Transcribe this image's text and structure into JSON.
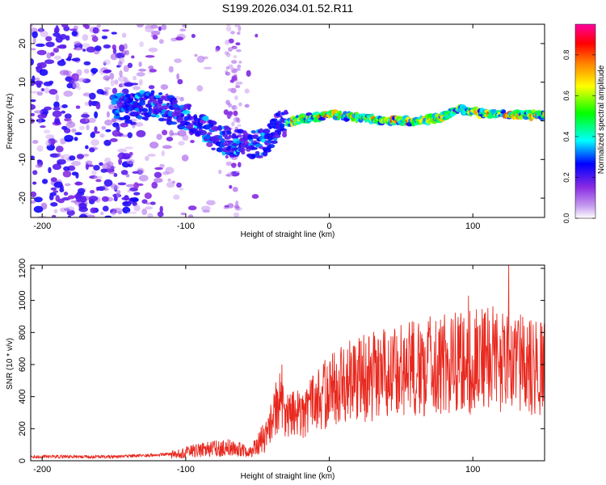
{
  "figure": {
    "title": "S199.2026.034.01.52.R11"
  },
  "colors": {
    "trace": "#e8281e",
    "axis": "#000000",
    "background": "#ffffff"
  },
  "chart_data": [
    {
      "type": "heatmap",
      "title": "S199.2026.034.01.52.R11",
      "xlabel": "Height of straight line (km)",
      "ylabel": "Frequency (Hz)",
      "xlim": [
        -208,
        150
      ],
      "ylim": [
        -25,
        25
      ],
      "xticks": [
        -200,
        -100,
        0,
        100
      ],
      "yticks": [
        -20,
        -10,
        0,
        10,
        20
      ],
      "colorbar": {
        "label": "Normalized spectral amplitude",
        "range": [
          0,
          0.95
        ],
        "ticks": [
          0.0,
          0.2,
          0.4,
          0.6,
          0.8
        ],
        "tick_labels": [
          "0.0",
          "0.2",
          "0.4",
          "0.6",
          "0.8"
        ],
        "colormap": [
          "#ffffff",
          "#8a2be2",
          "#0000ff",
          "#00ffff",
          "#00ff00",
          "#ffff00",
          "#ff8000",
          "#ff0000",
          "#ff00c0"
        ]
      },
      "ridge": {
        "description_points": [
          [
            -150,
            4
          ],
          [
            -120,
            4
          ],
          [
            -100,
            1
          ],
          [
            -80,
            -4
          ],
          [
            -65,
            -6
          ],
          [
            -45,
            -6
          ],
          [
            -35,
            -1
          ],
          [
            -20,
            0.5
          ],
          [
            0,
            1.5
          ],
          [
            20,
            1
          ],
          [
            40,
            0
          ],
          [
            60,
            0
          ],
          [
            75,
            0.5
          ],
          [
            90,
            3
          ],
          [
            105,
            2
          ],
          [
            120,
            1.5
          ],
          [
            150,
            1.5
          ]
        ],
        "high_amplitude_range_km": [
          -30,
          150
        ]
      }
    },
    {
      "type": "line",
      "xlabel": "Height of straight line (km)",
      "ylabel": "SNR (10 * v/v)",
      "xlim": [
        -208,
        150
      ],
      "ylim": [
        0,
        1220
      ],
      "xticks": [
        -200,
        -100,
        0,
        100
      ],
      "yticks": [
        0,
        200,
        400,
        600,
        800,
        1000,
        1200
      ],
      "series": [
        {
          "name": "SNR",
          "envelope_x": [
            -208,
            -150,
            -110,
            -90,
            -70,
            -55,
            -42,
            -35,
            -30,
            -20,
            -10,
            0,
            20,
            50,
            90,
            120,
            150
          ],
          "envelope_y": [
            25,
            25,
            40,
            70,
            90,
            55,
            200,
            400,
            280,
            300,
            380,
            450,
            520,
            580,
            620,
            650,
            600
          ],
          "peak_x": [
            -33,
            125,
            97
          ],
          "peak_y": [
            600,
            1220,
            1030
          ]
        }
      ]
    }
  ]
}
